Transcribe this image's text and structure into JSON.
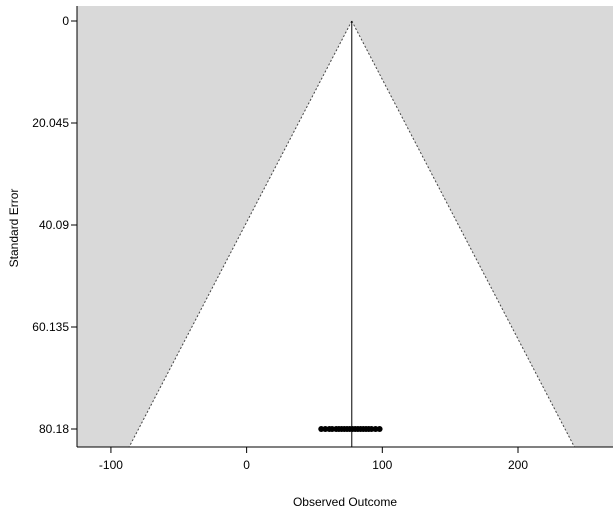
{
  "chart_data": {
    "type": "scatter",
    "subtype": "funnel",
    "title": "",
    "xlabel": "Observed Outcome",
    "ylabel": "Standard Error",
    "xlim": [
      -125,
      270
    ],
    "ylim": [
      0,
      80.18
    ],
    "y_reversed": true,
    "x_ticks": [
      -100,
      0,
      100,
      200
    ],
    "y_ticks": [
      0,
      20.045,
      40.09,
      60.135,
      80.18
    ],
    "y_tick_labels": [
      "0",
      "20.045",
      "40.09",
      "60.135",
      "80.18"
    ],
    "center_line": 77.5,
    "funnel_z": 1.96,
    "grid": false,
    "legend": "none",
    "colors": {
      "outside_region": "#d9d9d9",
      "inside_region": "#ffffff",
      "points": "#000000"
    },
    "points": [
      {
        "x": 55,
        "y": 80.18
      },
      {
        "x": 58,
        "y": 80.18
      },
      {
        "x": 61,
        "y": 80.18
      },
      {
        "x": 63,
        "y": 80.18
      },
      {
        "x": 66,
        "y": 80.18
      },
      {
        "x": 68,
        "y": 80.18
      },
      {
        "x": 70,
        "y": 80.18
      },
      {
        "x": 72,
        "y": 80.18
      },
      {
        "x": 74,
        "y": 80.18
      },
      {
        "x": 76,
        "y": 80.18
      },
      {
        "x": 78,
        "y": 80.18
      },
      {
        "x": 80,
        "y": 80.18
      },
      {
        "x": 82,
        "y": 80.18
      },
      {
        "x": 84,
        "y": 80.18
      },
      {
        "x": 86,
        "y": 80.18
      },
      {
        "x": 88,
        "y": 80.18
      },
      {
        "x": 90,
        "y": 80.18
      },
      {
        "x": 92,
        "y": 80.18
      },
      {
        "x": 95,
        "y": 80.18
      },
      {
        "x": 98,
        "y": 80.18
      }
    ]
  }
}
